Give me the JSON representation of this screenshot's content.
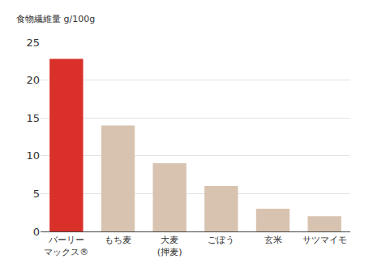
{
  "chart_data": {
    "type": "bar",
    "y_label": "食物繊維量 g/100g",
    "categories": [
      "バーリー\nマックス®",
      "もち麦",
      "大麦\n(押麦)",
      "ごぼう",
      "玄米",
      "サツマイモ"
    ],
    "values": [
      22.8,
      14,
      9,
      6,
      3,
      2
    ],
    "colors": [
      "#d9302a",
      "#d8c3b0",
      "#d8c3b0",
      "#d8c3b0",
      "#d8c3b0",
      "#d8c3b0"
    ],
    "ylim": [
      0,
      25
    ],
    "yticks": [
      0,
      5,
      10,
      15,
      20,
      25
    ],
    "grid": true
  }
}
